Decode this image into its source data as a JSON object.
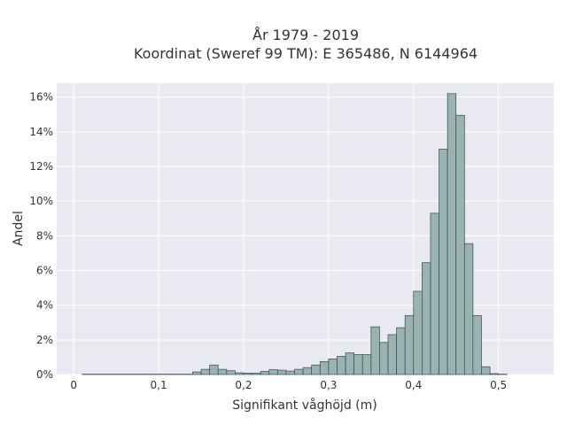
{
  "chart_data": {
    "type": "bar",
    "title": "År 1979 - 2019",
    "subtitle": "Koordinat (Sweref 99 TM): E 365486, N 6144964",
    "xlabel": "Signifikant våghöjd (m)",
    "ylabel": "Andel",
    "x_ticks": [
      "0",
      "0,1",
      "0,2",
      "0,3",
      "0,4",
      "0,5"
    ],
    "y_ticks": [
      "0%",
      "2%",
      "4%",
      "6%",
      "8%",
      "10%",
      "12%",
      "14%",
      "16%"
    ],
    "xlim": [
      -0.02,
      0.565
    ],
    "ylim": [
      0,
      16.8
    ],
    "bin_width": 0.01,
    "bin_starts": [
      0.0,
      0.01,
      0.02,
      0.03,
      0.04,
      0.05,
      0.06,
      0.07,
      0.08,
      0.09,
      0.1,
      0.11,
      0.12,
      0.13,
      0.14,
      0.15,
      0.16,
      0.17,
      0.18,
      0.19,
      0.2,
      0.21,
      0.22,
      0.23,
      0.24,
      0.25,
      0.26,
      0.27,
      0.28,
      0.29,
      0.3,
      0.31,
      0.32,
      0.33,
      0.34,
      0.35,
      0.36,
      0.37,
      0.38,
      0.39,
      0.4,
      0.41,
      0.42,
      0.43,
      0.44,
      0.45,
      0.46,
      0.47,
      0.48,
      0.49,
      0.5,
      0.51,
      0.52,
      0.53
    ],
    "values": [
      0,
      0.02,
      0.02,
      0.02,
      0.02,
      0.02,
      0.02,
      0.02,
      0.02,
      0.02,
      0.02,
      0.02,
      0.02,
      0.02,
      0.15,
      0.3,
      0.55,
      0.3,
      0.22,
      0.1,
      0.08,
      0.08,
      0.18,
      0.28,
      0.25,
      0.2,
      0.3,
      0.4,
      0.55,
      0.75,
      0.9,
      1.05,
      1.25,
      1.15,
      1.15,
      2.75,
      1.85,
      2.3,
      2.7,
      3.4,
      4.8,
      6.45,
      9.3,
      13.0,
      16.2,
      14.95,
      7.55,
      3.4,
      0.45,
      0.05,
      0.02,
      0.0,
      0.0,
      0.0
    ],
    "grid": true,
    "legend": "none",
    "background": "#e9e9f1",
    "bar_color": "#99b2b2",
    "bar_edge": "#3a4a4a"
  }
}
